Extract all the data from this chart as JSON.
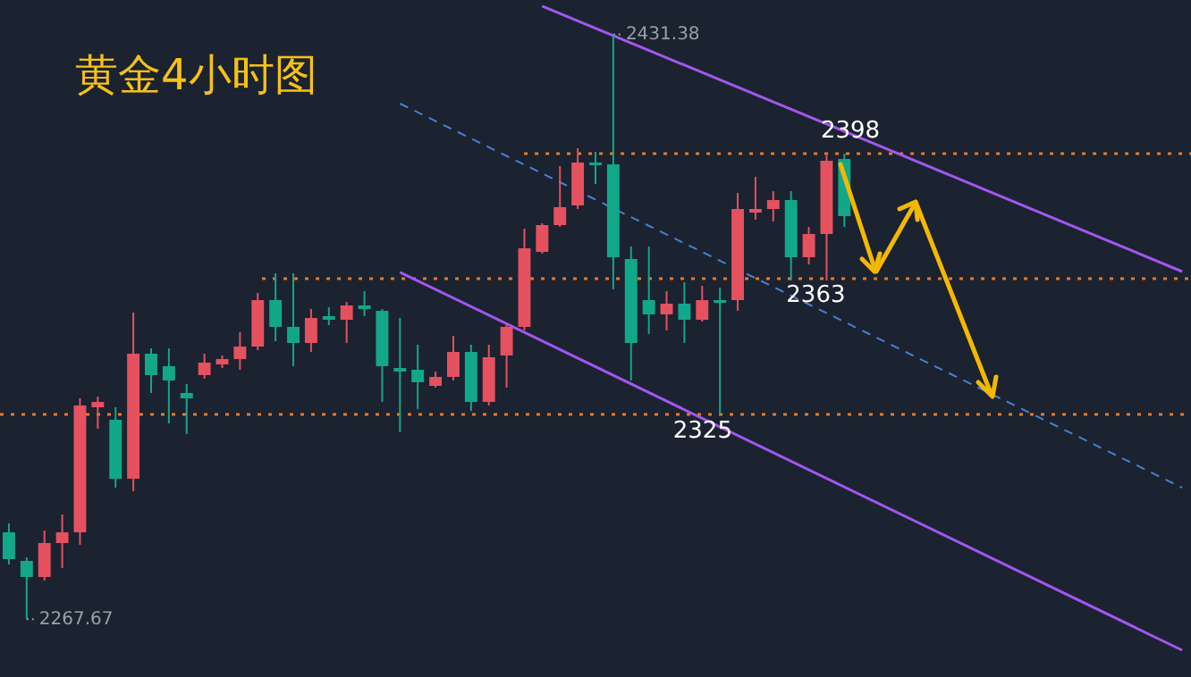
{
  "chart_data": {
    "type": "candlestick",
    "title": "黄金4小时图",
    "categories": [
      null,
      null,
      null,
      null,
      null,
      null,
      null,
      null,
      null,
      null,
      null,
      null,
      null,
      null,
      null,
      null,
      null,
      null,
      null,
      null,
      null,
      null,
      null,
      null,
      null,
      null,
      null,
      null,
      null,
      null,
      null,
      null,
      null,
      null,
      null,
      null,
      null,
      null,
      null,
      null,
      null,
      null,
      null,
      null,
      null,
      null,
      null,
      null,
      null,
      null,
      null,
      null,
      null,
      null,
      null,
      null,
      null,
      null,
      null,
      null,
      null,
      null,
      null,
      null,
      null,
      null,
      null
    ],
    "ohlc": [
      [
        2292,
        2294.5,
        2283,
        2284.5
      ],
      [
        2284,
        2285,
        2267.67,
        2279.5
      ],
      [
        2279.5,
        2292.5,
        2278.5,
        2289
      ],
      [
        2289,
        2297,
        2282,
        2292
      ],
      [
        2292,
        2329.5,
        2288.5,
        2327.5
      ],
      [
        2327,
        2330,
        2321,
        2328.5
      ],
      [
        2323.5,
        2327,
        2304.5,
        2307
      ],
      [
        2307,
        2353.5,
        2303.5,
        2342
      ],
      [
        2342,
        2343.5,
        2331,
        2336
      ],
      [
        2338.5,
        2343.5,
        2322.5,
        2334.5
      ],
      [
        2331,
        2333.5,
        2319.5,
        2329.5
      ],
      [
        2336,
        2342,
        2335,
        2339.5
      ],
      [
        2339,
        2341.5,
        2338,
        2340.5
      ],
      [
        2340.5,
        2348,
        2337.5,
        2344
      ],
      [
        2344,
        2359,
        2343,
        2357
      ],
      [
        2357,
        2364.5,
        2345.5,
        2349.5
      ],
      [
        2349.5,
        2364.5,
        2338.5,
        2345
      ],
      [
        2345,
        2354.5,
        2342.5,
        2352
      ],
      [
        2352.5,
        2355,
        2350,
        2351.5
      ],
      [
        2351.5,
        2356.5,
        2345,
        2355.5
      ],
      [
        2355.5,
        2359.5,
        2352.5,
        2354.5
      ],
      [
        2354,
        2354.5,
        2328.5,
        2338.5
      ],
      [
        2338,
        2352,
        2320,
        2337
      ],
      [
        2337.5,
        2344.5,
        2326.5,
        2334
      ],
      [
        2333,
        2337,
        2332.5,
        2335.5
      ],
      [
        2335.5,
        2347,
        2334.5,
        2342.5
      ],
      [
        2342.5,
        2344.5,
        2326,
        2328.5
      ],
      [
        2328.5,
        2344.5,
        2327.5,
        2341
      ],
      [
        2341.5,
        2350.5,
        2332.5,
        2349.5
      ],
      [
        2349.5,
        2377,
        2348.5,
        2371.5
      ],
      [
        2370.5,
        2378.5,
        2370,
        2378
      ],
      [
        2378,
        2394.5,
        2377.5,
        2383
      ],
      [
        2383.5,
        2399.5,
        2382.5,
        2395.5
      ],
      [
        2395.5,
        2398.5,
        2389.5,
        2395
      ],
      [
        2395,
        2431.38,
        2360,
        2369
      ],
      [
        2368.5,
        2372,
        2334.5,
        2345
      ],
      [
        2357,
        2372,
        2347.5,
        2353
      ],
      [
        2353,
        2359.5,
        2348.5,
        2356
      ],
      [
        2356,
        2362,
        2345,
        2351.5
      ],
      [
        2351.5,
        2361,
        2351,
        2357
      ],
      [
        2357,
        2360.5,
        2325,
        2356.5
      ],
      [
        2357,
        2387,
        2354,
        2382.5
      ],
      [
        2381.5,
        2391.5,
        2379.5,
        2382.5
      ],
      [
        2382.5,
        2387.5,
        2379,
        2385
      ],
      [
        2385,
        2387.5,
        2362.5,
        2369
      ],
      [
        2369,
        2377.5,
        2367,
        2375.5
      ],
      [
        2375.5,
        2397.5,
        2362.5,
        2396
      ],
      [
        2396.5,
        2398,
        2377.5,
        2380.5
      ],
      null,
      null,
      null,
      null,
      null,
      null,
      null,
      null,
      null,
      null,
      null,
      null,
      null,
      null,
      null,
      null,
      null,
      null,
      null
    ],
    "series": [
      {
        "type": "line",
        "color": "#a356f0",
        "line_style": "solid",
        "values": [
          null,
          null,
          null,
          null,
          null,
          null,
          null,
          null,
          null,
          null,
          null,
          null,
          null,
          null,
          null,
          null,
          null,
          null,
          null,
          null,
          null,
          null,
          null,
          null,
          null,
          null,
          null,
          null,
          null,
          null,
          2439.3,
          null,
          null,
          null,
          null,
          null,
          null,
          null,
          null,
          null,
          null,
          null,
          null,
          null,
          null,
          null,
          null,
          null,
          null,
          null,
          null,
          null,
          null,
          null,
          null,
          null,
          null,
          null,
          null,
          null,
          null,
          null,
          null,
          null,
          null,
          null,
          2365
        ]
      },
      {
        "type": "line",
        "color": "#4a7fd6",
        "line_style": "dashed",
        "values": [
          null,
          null,
          null,
          null,
          null,
          null,
          null,
          null,
          null,
          null,
          null,
          null,
          null,
          null,
          null,
          null,
          null,
          null,
          null,
          null,
          null,
          null,
          2412,
          null,
          null,
          null,
          null,
          null,
          null,
          null,
          null,
          null,
          null,
          null,
          null,
          null,
          null,
          null,
          null,
          null,
          null,
          null,
          null,
          null,
          null,
          null,
          null,
          null,
          null,
          null,
          null,
          null,
          null,
          null,
          null,
          null,
          null,
          null,
          null,
          null,
          null,
          null,
          null,
          null,
          null,
          null,
          2304.5
        ]
      },
      {
        "type": "line",
        "color": "#a356f0",
        "line_style": "solid",
        "values": [
          null,
          null,
          null,
          null,
          null,
          null,
          null,
          null,
          null,
          null,
          null,
          null,
          null,
          null,
          null,
          null,
          null,
          null,
          null,
          null,
          null,
          null,
          2364.8,
          null,
          null,
          null,
          null,
          null,
          null,
          null,
          null,
          null,
          null,
          null,
          null,
          null,
          null,
          null,
          null,
          null,
          null,
          null,
          null,
          null,
          null,
          null,
          null,
          null,
          null,
          null,
          null,
          null,
          null,
          null,
          null,
          null,
          null,
          null,
          null,
          null,
          null,
          null,
          null,
          null,
          null,
          null,
          2259
        ]
      }
    ],
    "ylim": [
      2251.5,
      2441
    ],
    "tick_labels": false,
    "ref_lines": [
      {
        "axis": "y",
        "value": 2398,
        "label": "2398",
        "color": "#e87a2a",
        "line_style": "dotted"
      },
      {
        "axis": "y",
        "value": 2363,
        "label": "2363",
        "color": "#e87a2a",
        "line_style": "dotted"
      },
      {
        "axis": "y",
        "value": 2325,
        "label": "2325",
        "color": "#e87a2a",
        "line_style": "dotted"
      }
    ],
    "annotations": [
      "2431.38",
      "2267.67"
    ]
  }
}
